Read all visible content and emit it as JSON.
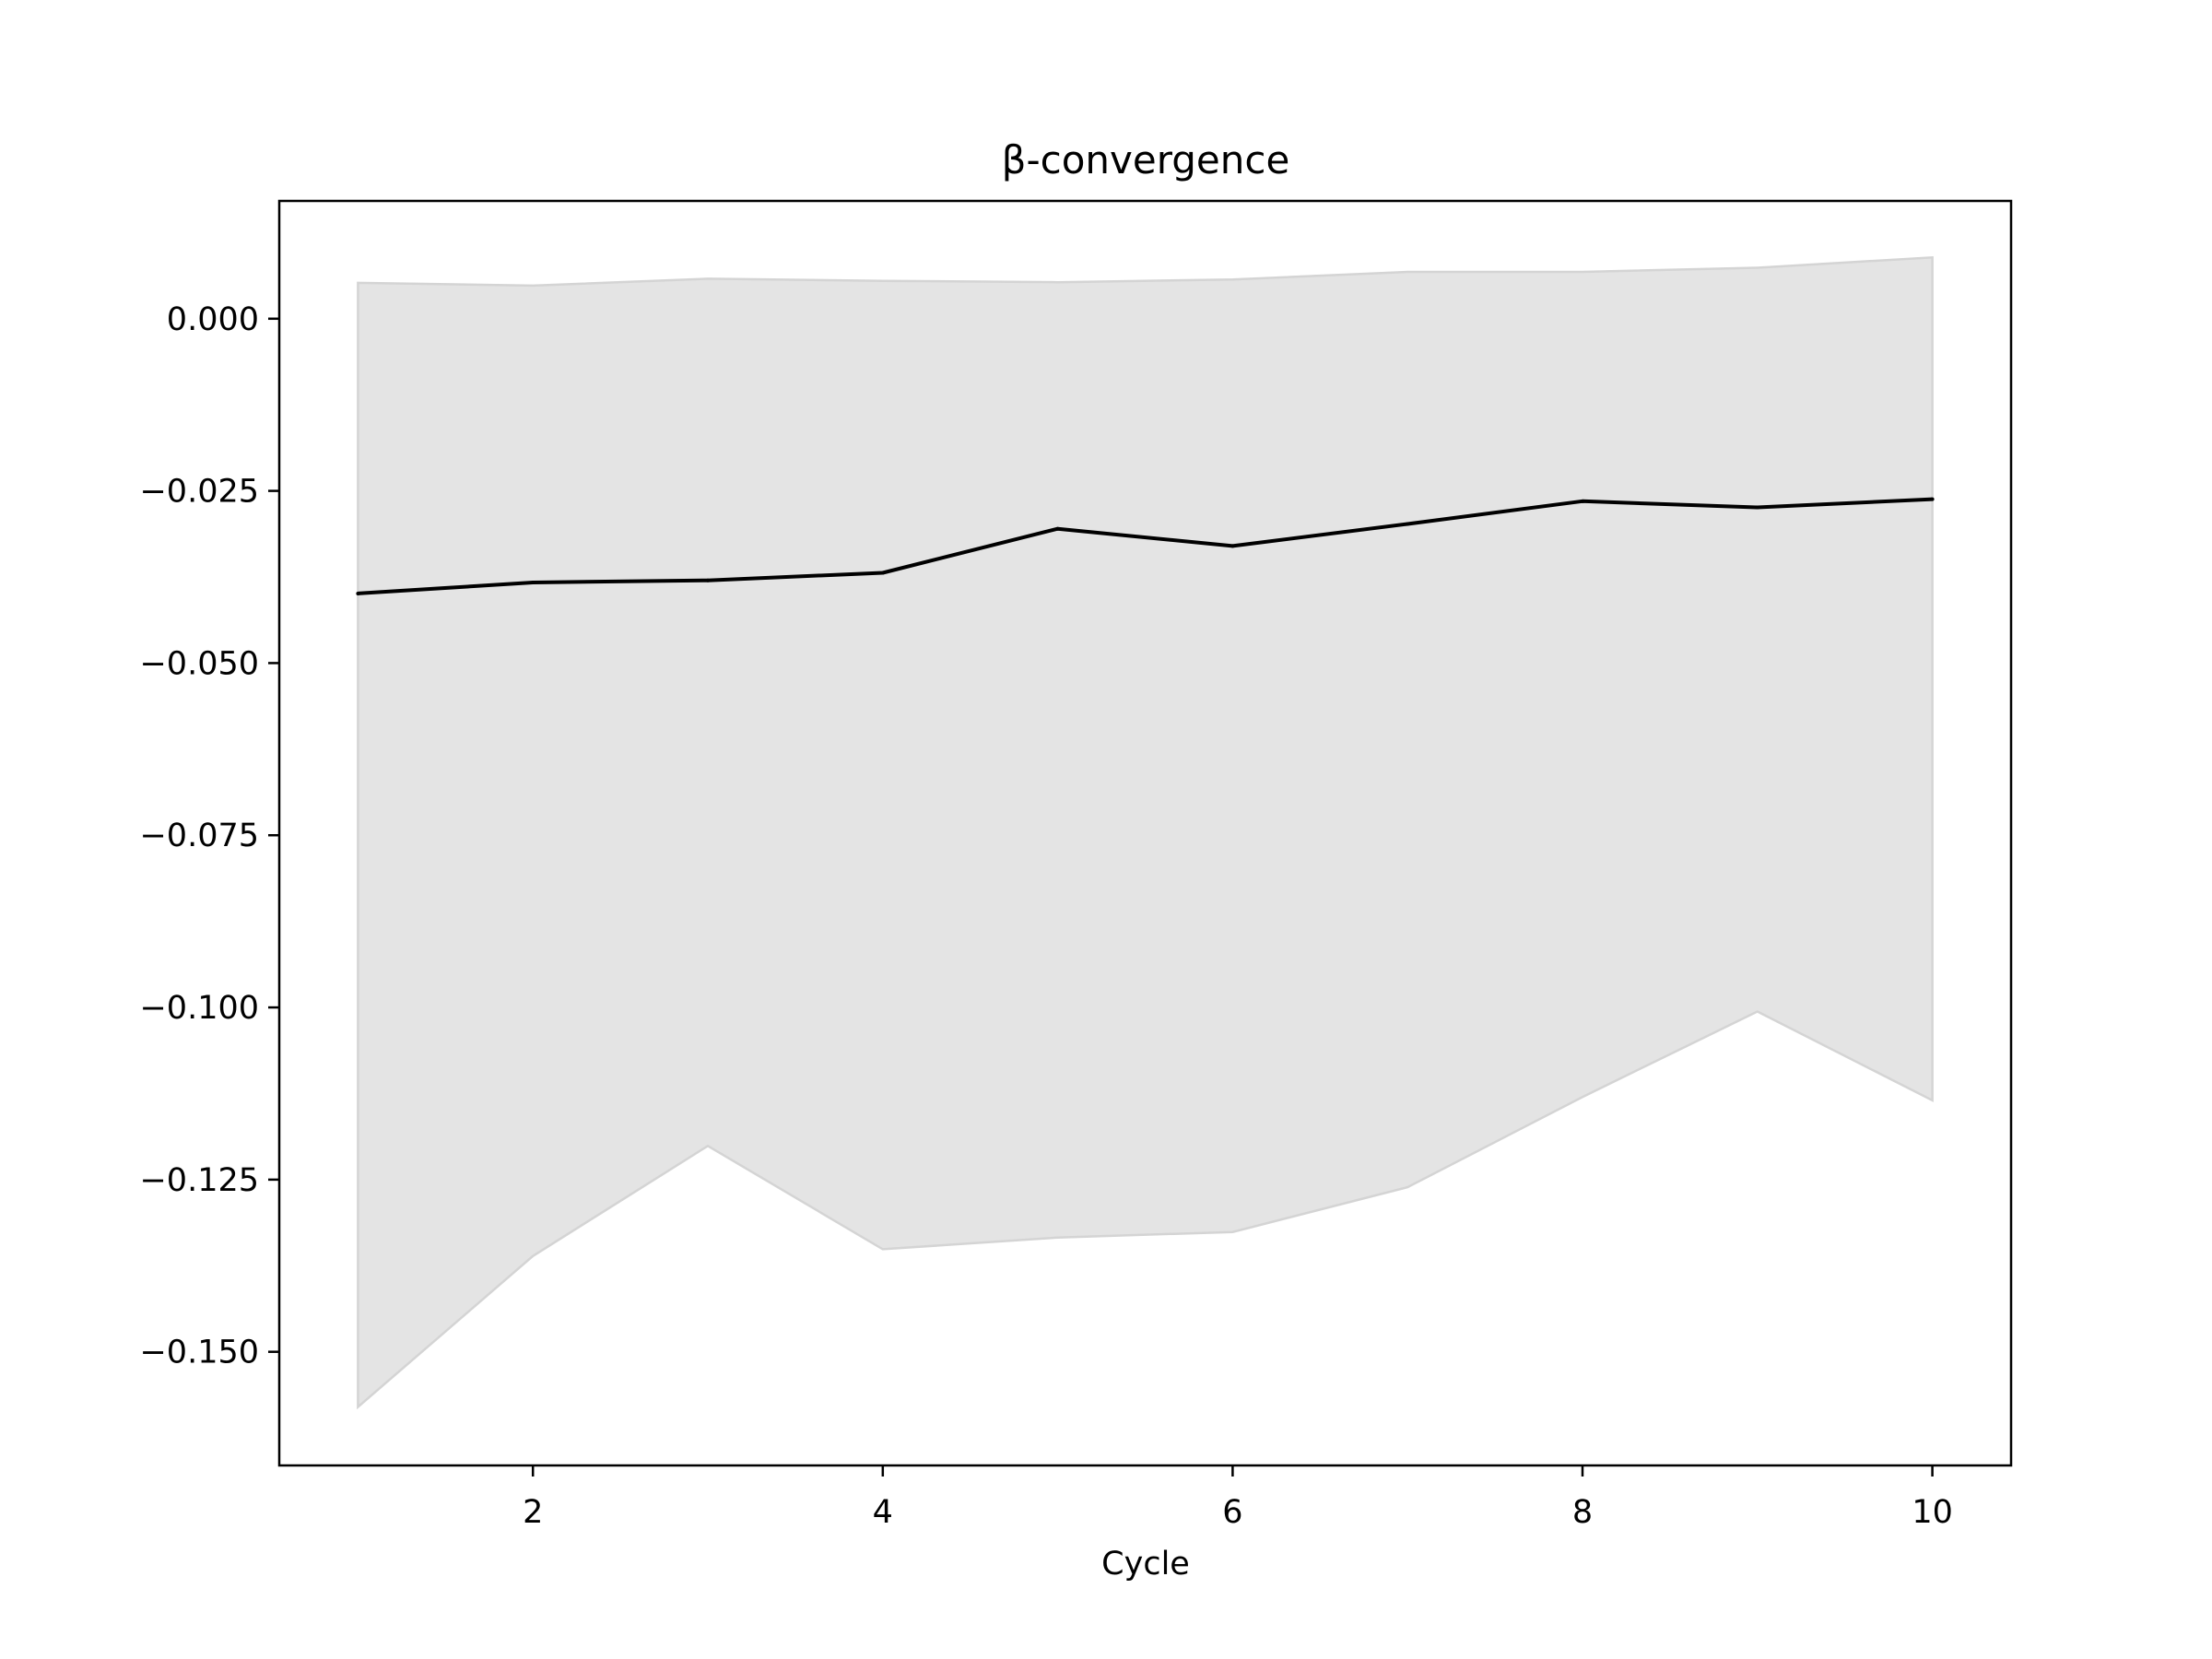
{
  "chart_data": {
    "type": "line",
    "title": "β-convergence",
    "xlabel": "Cycle",
    "ylabel": "",
    "x": [
      1,
      2,
      3,
      4,
      5,
      6,
      7,
      8,
      9,
      10
    ],
    "series": [
      {
        "values": [
          -0.0399,
          -0.0383,
          -0.038,
          -0.0369,
          -0.0305,
          -0.033,
          -0.0298,
          -0.0265,
          -0.0274,
          -0.0262
        ],
        "color": "#000000"
      }
    ],
    "band": {
      "upper": [
        0.0052,
        0.0048,
        0.0058,
        0.0055,
        0.0053,
        0.0057,
        0.0068,
        0.0068,
        0.0074,
        0.0089
      ],
      "lower": [
        -0.158,
        -0.1361,
        -0.1201,
        -0.1351,
        -0.1334,
        -0.1326,
        -0.1261,
        -0.113,
        -0.1006,
        -0.1135
      ],
      "color": "#e4e4e4",
      "edge_color": "#d4d4d4"
    },
    "xlim": [
      0.55,
      10.45
    ],
    "ylim": [
      -0.1665,
      0.0171
    ],
    "xticks": [
      2,
      4,
      6,
      8,
      10
    ],
    "xtick_labels": [
      "2",
      "4",
      "6",
      "8",
      "10"
    ],
    "yticks": [
      0.0,
      -0.025,
      -0.05,
      -0.075,
      -0.1,
      -0.125,
      -0.15
    ],
    "ytick_labels": [
      "0.000",
      "−0.025",
      "−0.050",
      "−0.075",
      "−0.100",
      "−0.125",
      "−0.150"
    ],
    "grid": false,
    "legend": false
  }
}
